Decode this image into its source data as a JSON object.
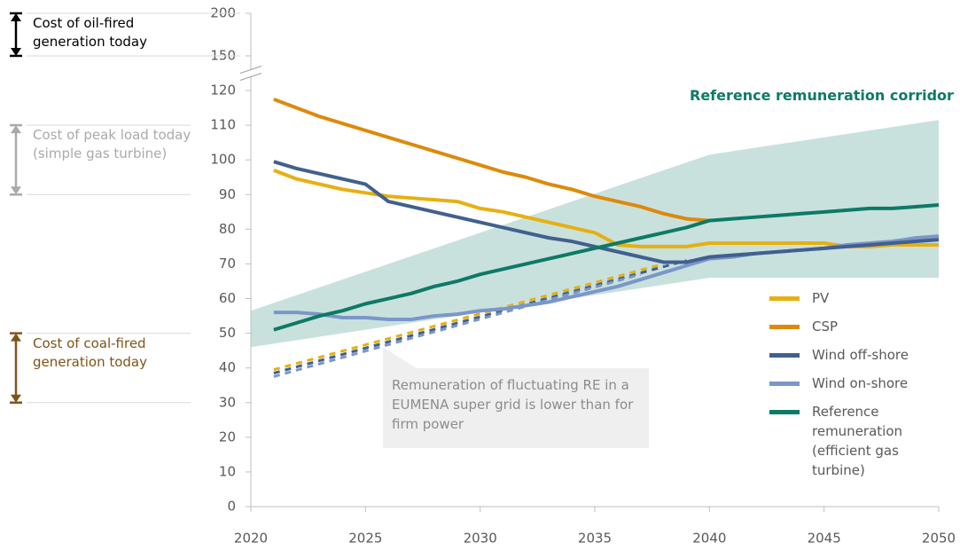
{
  "chart_data": {
    "type": "line",
    "x": [
      2021,
      2022,
      2023,
      2024,
      2025,
      2026,
      2027,
      2028,
      2029,
      2030,
      2031,
      2032,
      2033,
      2034,
      2035,
      2036,
      2037,
      2038,
      2039,
      2040,
      2041,
      2042,
      2043,
      2044,
      2045,
      2046,
      2047,
      2048,
      2049,
      2050
    ],
    "series": [
      {
        "name": "PV",
        "color": "#e6b011",
        "values": [
          97,
          94.5,
          93,
          91.5,
          90.5,
          89.5,
          89,
          88.5,
          88,
          86,
          85,
          83.5,
          82,
          80.5,
          79,
          75.5,
          75,
          75,
          75,
          76,
          76,
          76,
          76,
          76,
          76,
          75,
          75,
          75.5,
          75.5,
          75.5
        ]
      },
      {
        "name": "CSP",
        "color": "#dd8a0b",
        "values": [
          117.5,
          115,
          112.5,
          110.5,
          108.5,
          106.5,
          104.5,
          102.5,
          100.5,
          98.5,
          96.5,
          95,
          93,
          91.5,
          89.5,
          88,
          86.5,
          84.5,
          83,
          82.5,
          null,
          null,
          null,
          null,
          null,
          null,
          null,
          null,
          null,
          null
        ]
      },
      {
        "name": "Wind off-shore",
        "color": "#41608f",
        "values": [
          99.5,
          97.5,
          96,
          94.5,
          93,
          88,
          86.5,
          85,
          83.5,
          82,
          80.5,
          79,
          77.5,
          76.5,
          75,
          73.5,
          72,
          70.5,
          70.5,
          72,
          72.5,
          73,
          73.5,
          74,
          74.5,
          75,
          75.5,
          76,
          76.5,
          77
        ]
      },
      {
        "name": "Wind on-shore",
        "color": "#7b96c8",
        "values": [
          56,
          56,
          55.5,
          54.5,
          54.5,
          54,
          54,
          55,
          55.5,
          56.5,
          57,
          58,
          59,
          60.5,
          62,
          63.5,
          65.5,
          67.5,
          69.5,
          71.5,
          72,
          73,
          73.5,
          74,
          74.5,
          75.5,
          76,
          76.5,
          77.5,
          78
        ]
      },
      {
        "name": "Reference remuneration (efficient gas turbine)",
        "color": "#0d7a66",
        "values": [
          51,
          53,
          55,
          56.5,
          58.5,
          60,
          61.5,
          63.5,
          65,
          67,
          68.5,
          70,
          71.5,
          73,
          74.5,
          76,
          77.5,
          79,
          80.5,
          82.5,
          83,
          83.5,
          84,
          84.5,
          85,
          85.5,
          86,
          86,
          86.5,
          87
        ]
      }
    ],
    "fluctuating": [
      {
        "color": "#e6b011",
        "x": [
          2021,
          2038
        ],
        "values": [
          39.5,
          70
        ]
      },
      {
        "color": "#41608f",
        "x": [
          2021,
          2039
        ],
        "values": [
          38.5,
          71
        ]
      },
      {
        "color": "#7b96c8",
        "x": [
          2021,
          2037
        ],
        "values": [
          37.5,
          67
        ]
      }
    ],
    "corridor": {
      "name": "Reference remuneration corridor",
      "color": "#c9e1dd",
      "x": [
        2020,
        2040,
        2050
      ],
      "upper": [
        56.5,
        101.5,
        111.5
      ],
      "lower": [
        46,
        66,
        66
      ]
    },
    "callout": "Remuneration of fluctuating RE in a EUMENA super grid is lower than for firm power",
    "annotations": [
      {
        "text": "Cost of oil-fired generation today",
        "range": [
          150,
          200
        ],
        "color": "#000000"
      },
      {
        "text": "Cost of peak load today (simple gas turbine)",
        "range": [
          90,
          110
        ],
        "color": "#aaaaaa"
      },
      {
        "text": "Cost of coal-fired generation today",
        "range": [
          30,
          50
        ],
        "color": "#7f5417"
      }
    ],
    "xlim": [
      2020,
      2050
    ],
    "xticks": [
      2020,
      2025,
      2030,
      2035,
      2040,
      2045,
      2050
    ],
    "ylim": [
      0,
      200
    ],
    "y_break": [
      130,
      150
    ],
    "yticks": [
      0,
      10,
      20,
      30,
      40,
      50,
      60,
      70,
      80,
      90,
      100,
      110,
      120,
      150,
      200
    ]
  }
}
